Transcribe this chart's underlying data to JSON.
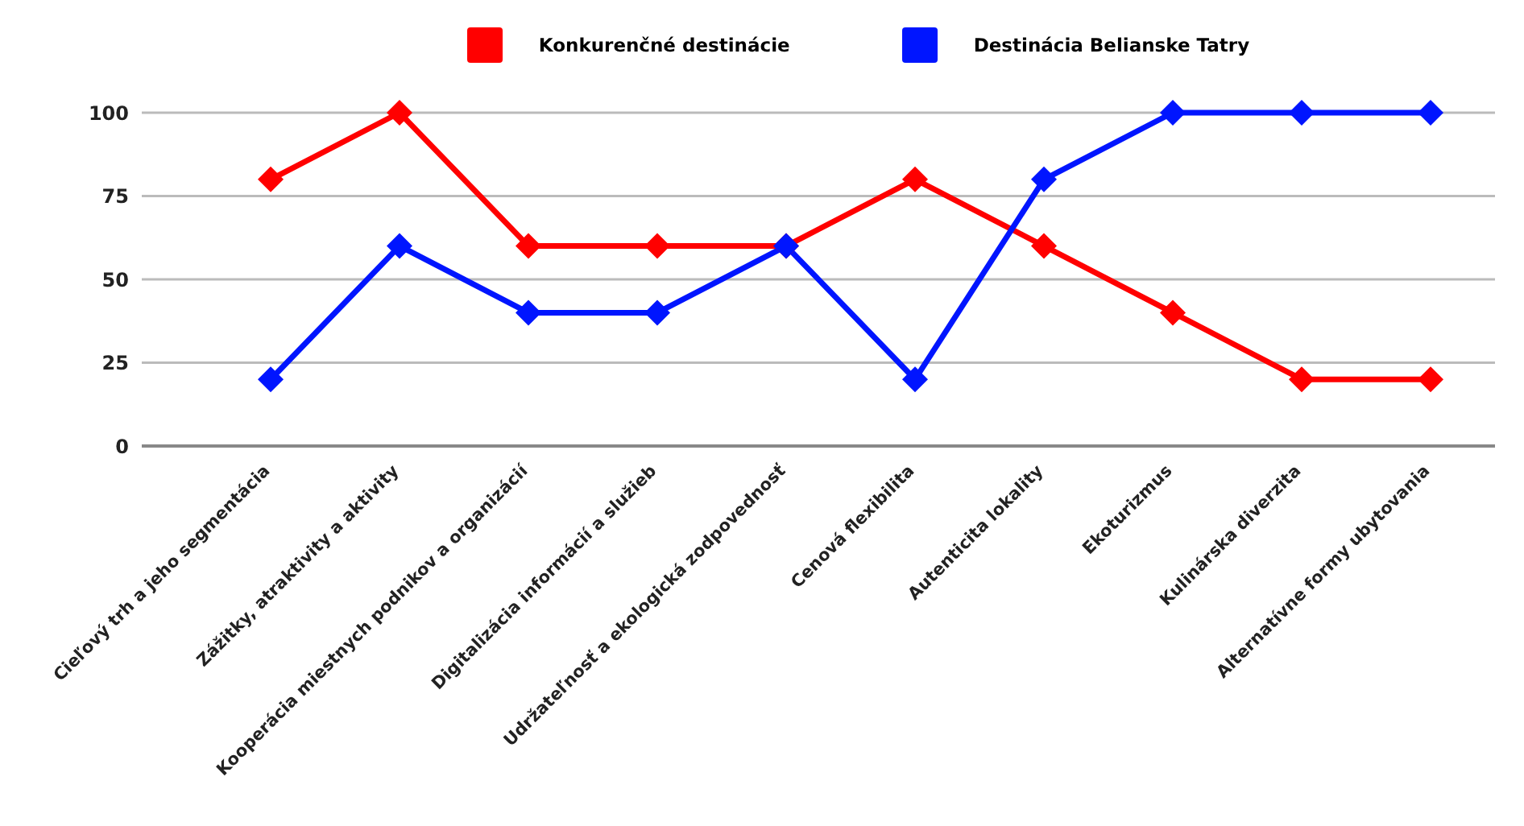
{
  "chart_data": {
    "type": "line",
    "categories": [
      "Cieľový trh a jeho segmentácia",
      "Zážitky, atraktivity a aktivity",
      "Kooperácia miestnych podnikov a organizácií",
      "Digitalizácia informácií a služieb",
      "Udržateľnosť a ekologická zodpovednosť",
      "Cenová flexibilita",
      "Autenticita lokality",
      "Ekoturizmus",
      "Kulinárska diverzita",
      "Alternatívne formy ubytovania"
    ],
    "series": [
      {
        "name": "Konkurenčné destinácie",
        "color": "#ff0000",
        "values": [
          80,
          100,
          60,
          60,
          60,
          80,
          60,
          40,
          20,
          20
        ]
      },
      {
        "name": "Destinácia Belianske Tatry",
        "color": "#0015ff",
        "values": [
          20,
          60,
          40,
          40,
          60,
          20,
          80,
          100,
          100,
          100
        ]
      }
    ],
    "ylim": [
      0,
      100
    ],
    "yticks": [
      0,
      25,
      50,
      75,
      100
    ],
    "grid": "y",
    "legend": "top",
    "marker": "diamond",
    "line_style": "solid"
  }
}
